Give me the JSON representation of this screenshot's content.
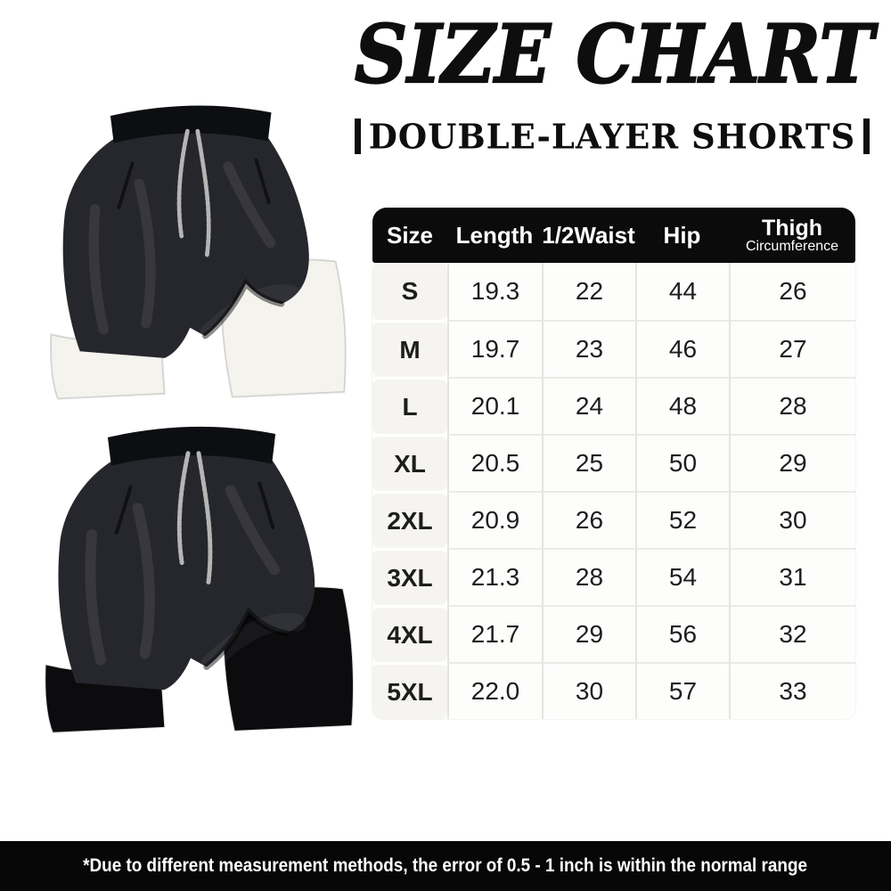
{
  "page": {
    "title": "SIZE CHART",
    "subtitle": "DOUBLE-LAYER SHORTS",
    "footer_note": "*Due to different measurement methods, the error of 0.5 - 1 inch is within the normal range"
  },
  "size_chart": {
    "columns": [
      "Size",
      "Length",
      "1/2Waist",
      "Hip",
      "Thigh"
    ],
    "thigh_subtext": "Circumference",
    "rows": [
      [
        "S",
        "19.3",
        "22",
        "44",
        "26"
      ],
      [
        "M",
        "19.7",
        "23",
        "46",
        "27"
      ],
      [
        "L",
        "20.1",
        "24",
        "48",
        "28"
      ],
      [
        "XL",
        "20.5",
        "25",
        "50",
        "29"
      ],
      [
        "2XL",
        "20.9",
        "26",
        "52",
        "30"
      ],
      [
        "3XL",
        "21.3",
        "28",
        "54",
        "31"
      ],
      [
        "4XL",
        "21.7",
        "29",
        "56",
        "32"
      ],
      [
        "5XL",
        "22.0",
        "30",
        "57",
        "33"
      ]
    ]
  },
  "product_images": [
    {
      "description": "Black double-layer shorts with white inner liner",
      "liner_color": "#f4f3ee"
    },
    {
      "description": "Black double-layer shorts with black inner liner",
      "liner_color": "#0c0c0e"
    }
  ],
  "colors": {
    "header_bg": "#0b0b0c",
    "header_text": "#ffffff",
    "footer_bg": "#070707",
    "footer_text": "#ffffff",
    "size_col_bg": "#f5f4f0",
    "grid_line": "#e6e4e0",
    "shorts_fabric": "#26272d",
    "waistband": "#0d0e11",
    "drawstring": "#b5b5b5"
  }
}
